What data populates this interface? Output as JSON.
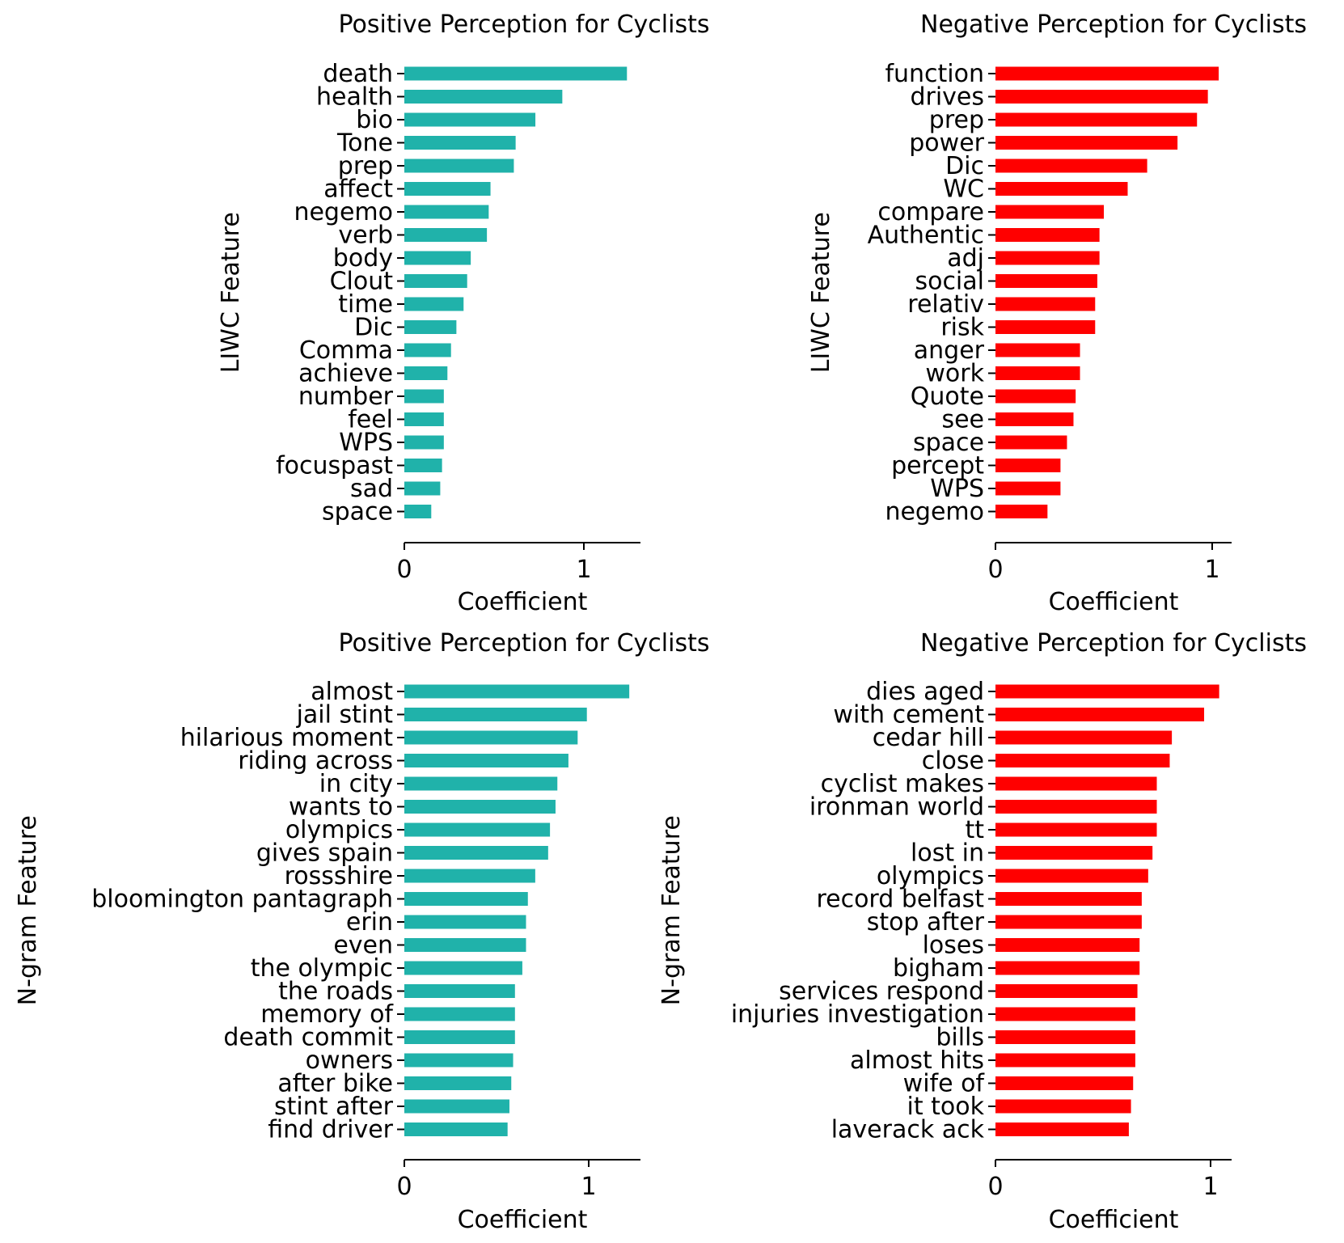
{
  "chart_data": [
    {
      "type": "bar",
      "orientation": "horizontal",
      "title": "Positive Perception for Cyclists",
      "xlabel": "Coefficient",
      "ylabel": "LIWC Feature",
      "color": "#20b2aa",
      "xlim": [
        0,
        1.3
      ],
      "xticks": [
        0,
        1
      ],
      "categories": [
        "death",
        "health",
        "bio",
        "Tone",
        "prep",
        "affect",
        "negemo",
        "verb",
        "body",
        "Clout",
        "time",
        "Dic",
        "Comma",
        "achieve",
        "number",
        "feel",
        "WPS",
        "focuspast",
        "sad",
        "space"
      ],
      "values": [
        1.24,
        0.88,
        0.73,
        0.62,
        0.61,
        0.48,
        0.47,
        0.46,
        0.37,
        0.35,
        0.33,
        0.29,
        0.26,
        0.24,
        0.22,
        0.22,
        0.22,
        0.21,
        0.2,
        0.15
      ]
    },
    {
      "type": "bar",
      "orientation": "horizontal",
      "title": "Negative Perception for Cyclists",
      "xlabel": "Coefficient",
      "ylabel": "LIWC Feature",
      "color": "#ff0000",
      "xlim": [
        0,
        1.09
      ],
      "xticks": [
        0,
        1
      ],
      "categories": [
        "function",
        "drives",
        "prep",
        "power",
        "Dic",
        "WC",
        "compare",
        "Authentic",
        "adj",
        "social",
        "relativ",
        "risk",
        "anger",
        "work",
        "Quote",
        "see",
        "space",
        "percept",
        "WPS",
        "negemo"
      ],
      "values": [
        1.03,
        0.98,
        0.93,
        0.84,
        0.7,
        0.61,
        0.5,
        0.48,
        0.48,
        0.47,
        0.46,
        0.46,
        0.39,
        0.39,
        0.37,
        0.36,
        0.33,
        0.3,
        0.3,
        0.24
      ]
    },
    {
      "type": "bar",
      "orientation": "horizontal",
      "title": "Positive Perception for Cyclists",
      "xlabel": "Coefficient",
      "ylabel": "N-gram Feature",
      "color": "#20b2aa",
      "xlim": [
        0,
        1.28
      ],
      "xticks": [
        0,
        1
      ],
      "categories": [
        "almost",
        "jail stint",
        "hilarious moment",
        "riding across",
        "in city",
        "wants to",
        "olympics",
        "gives spain",
        "rossshire",
        "bloomington pantagraph",
        "erin",
        "even",
        "the olympic",
        "the roads",
        "memory of",
        "death commit",
        "owners",
        "after bike",
        "stint after",
        "find driver"
      ],
      "values": [
        1.22,
        0.99,
        0.94,
        0.89,
        0.83,
        0.82,
        0.79,
        0.78,
        0.71,
        0.67,
        0.66,
        0.66,
        0.64,
        0.6,
        0.6,
        0.6,
        0.59,
        0.58,
        0.57,
        0.56
      ]
    },
    {
      "type": "bar",
      "orientation": "horizontal",
      "title": "Negative Perception for Cyclists",
      "xlabel": "Coefficient",
      "ylabel": "N-gram Feature",
      "color": "#ff0000",
      "xlim": [
        0,
        1.1
      ],
      "xticks": [
        0,
        1
      ],
      "categories": [
        "dies aged",
        "with cement",
        "cedar hill",
        "close",
        "cyclist makes",
        "ironman world",
        "tt",
        "lost in",
        "olympics",
        "record belfast",
        "stop after",
        "loses",
        "bigham",
        "services respond",
        "injuries investigation",
        "bills",
        "almost hits",
        "wife of",
        "it took",
        "laverack ack"
      ],
      "values": [
        1.04,
        0.97,
        0.82,
        0.81,
        0.75,
        0.75,
        0.75,
        0.73,
        0.71,
        0.68,
        0.68,
        0.67,
        0.67,
        0.66,
        0.65,
        0.65,
        0.65,
        0.64,
        0.63,
        0.62
      ]
    }
  ]
}
